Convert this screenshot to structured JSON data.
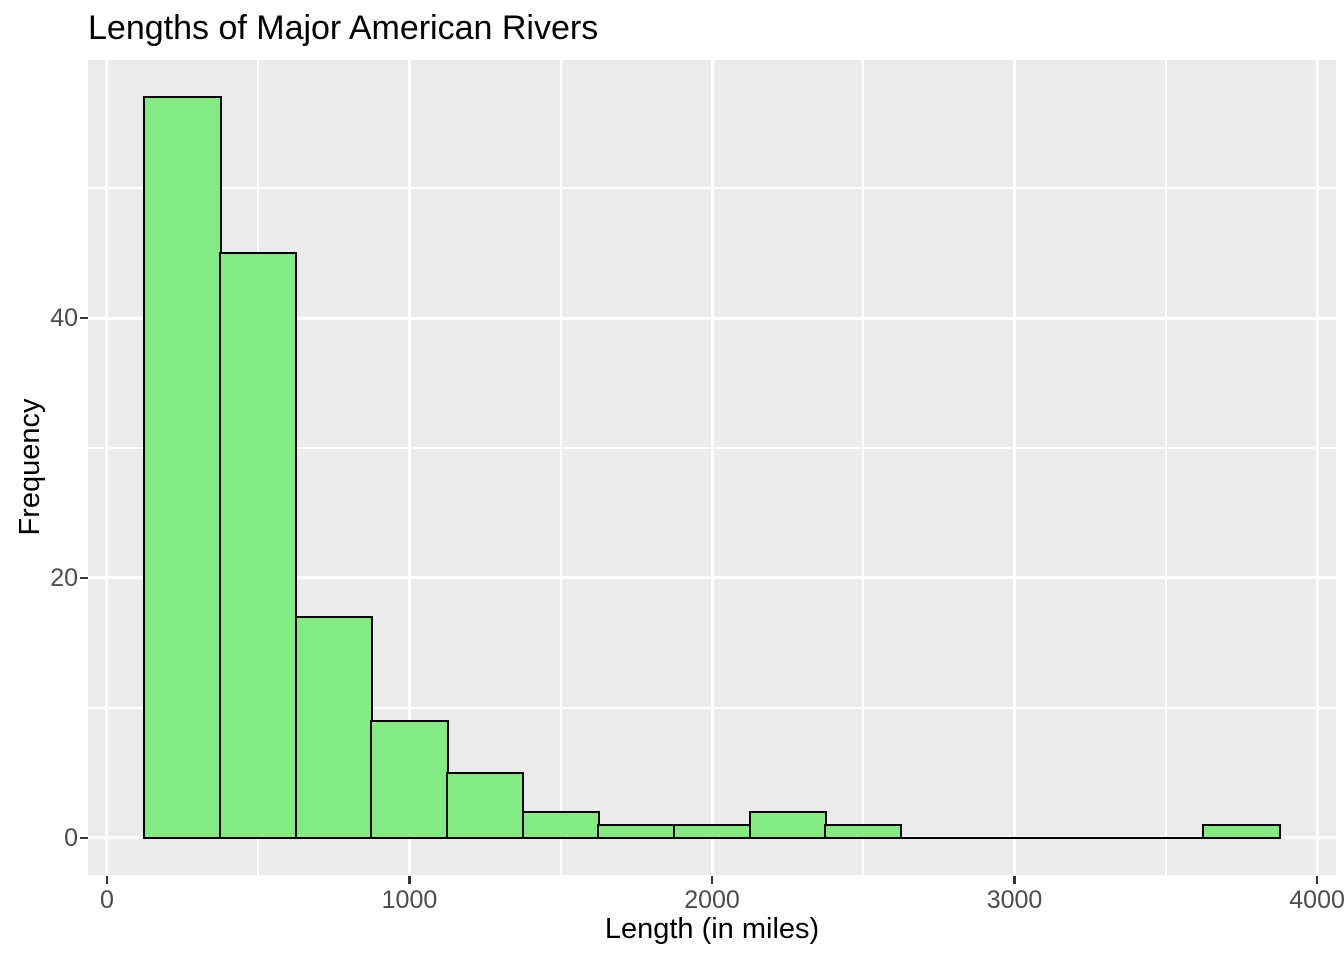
{
  "chart_data": {
    "type": "bar",
    "subtype": "histogram",
    "title": "Lengths of Major American Rivers",
    "xlabel": "Length (in miles)",
    "ylabel": "Frequency",
    "bin_start": 125,
    "bin_width": 250,
    "bin_edges": [
      125,
      375,
      625,
      875,
      1125,
      1375,
      1625,
      1875,
      2125,
      2375,
      2625,
      2875,
      3125,
      3375,
      3625,
      3875
    ],
    "counts": [
      57,
      45,
      17,
      9,
      5,
      2,
      1,
      1,
      2,
      1,
      0,
      0,
      0,
      0,
      1
    ],
    "total_observations": 141,
    "x_ticks": [
      0,
      1000,
      2000,
      3000,
      4000
    ],
    "y_ticks": [
      0,
      20,
      40
    ],
    "x_minor_ticks": [
      500,
      1500,
      2500,
      3500
    ],
    "y_minor_ticks": [
      10,
      30,
      50
    ],
    "xlim": [
      -62.5,
      4062.5
    ],
    "ylim": [
      -2.85,
      59.85
    ],
    "grid": "major and minor, white on gray panel",
    "legend": "none",
    "style": {
      "bar_fill": "#84EA84",
      "bar_stroke": "#000000",
      "panel_bg": "#EBEBEB",
      "grid_color": "#FFFFFF",
      "tick_mark_color": "#333333",
      "tick_label_color": "#4D4D4D",
      "title_color": "#000000",
      "page_bg": "#FFFFFF"
    }
  }
}
